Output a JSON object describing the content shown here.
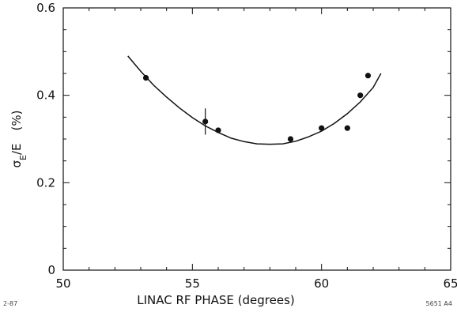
{
  "chart_data": {
    "type": "scatter",
    "title": "",
    "xlabel": "LINAC RF PHASE    (degrees)",
    "ylabel_main": "σ",
    "ylabel_sub": "E",
    "ylabel_tail": "/E",
    "ylabel_unit": "(%)",
    "xlim": [
      50,
      65
    ],
    "ylim": [
      0,
      0.6
    ],
    "xticks": [
      50,
      55,
      60,
      65
    ],
    "yticks": [
      0,
      0.2,
      0.4,
      0.6
    ],
    "ytick_labels": [
      "0",
      "0.2",
      "0.4",
      "0.6"
    ],
    "grid": false,
    "points": [
      {
        "x": 53.2,
        "y": 0.44
      },
      {
        "x": 55.5,
        "y": 0.34
      },
      {
        "x": 56.0,
        "y": 0.32
      },
      {
        "x": 58.8,
        "y": 0.3
      },
      {
        "x": 60.0,
        "y": 0.325
      },
      {
        "x": 61.0,
        "y": 0.325
      },
      {
        "x": 61.5,
        "y": 0.4
      },
      {
        "x": 61.8,
        "y": 0.445
      }
    ],
    "error_bar": {
      "x": 55.5,
      "y": 0.34,
      "yerr": 0.03
    },
    "fit_curve": [
      {
        "x": 52.5,
        "y": 0.49
      },
      {
        "x": 53.0,
        "y": 0.455
      },
      {
        "x": 53.5,
        "y": 0.423
      },
      {
        "x": 54.0,
        "y": 0.396
      },
      {
        "x": 54.5,
        "y": 0.371
      },
      {
        "x": 55.0,
        "y": 0.349
      },
      {
        "x": 55.5,
        "y": 0.33
      },
      {
        "x": 56.0,
        "y": 0.315
      },
      {
        "x": 56.5,
        "y": 0.302
      },
      {
        "x": 57.0,
        "y": 0.294
      },
      {
        "x": 57.5,
        "y": 0.289
      },
      {
        "x": 58.0,
        "y": 0.288
      },
      {
        "x": 58.5,
        "y": 0.289
      },
      {
        "x": 59.0,
        "y": 0.295
      },
      {
        "x": 59.5,
        "y": 0.305
      },
      {
        "x": 60.0,
        "y": 0.318
      },
      {
        "x": 60.5,
        "y": 0.336
      },
      {
        "x": 61.0,
        "y": 0.358
      },
      {
        "x": 61.5,
        "y": 0.385
      },
      {
        "x": 62.0,
        "y": 0.418
      },
      {
        "x": 62.3,
        "y": 0.45
      }
    ]
  },
  "notes": {
    "left": "2-87",
    "right": "5651 A4"
  }
}
